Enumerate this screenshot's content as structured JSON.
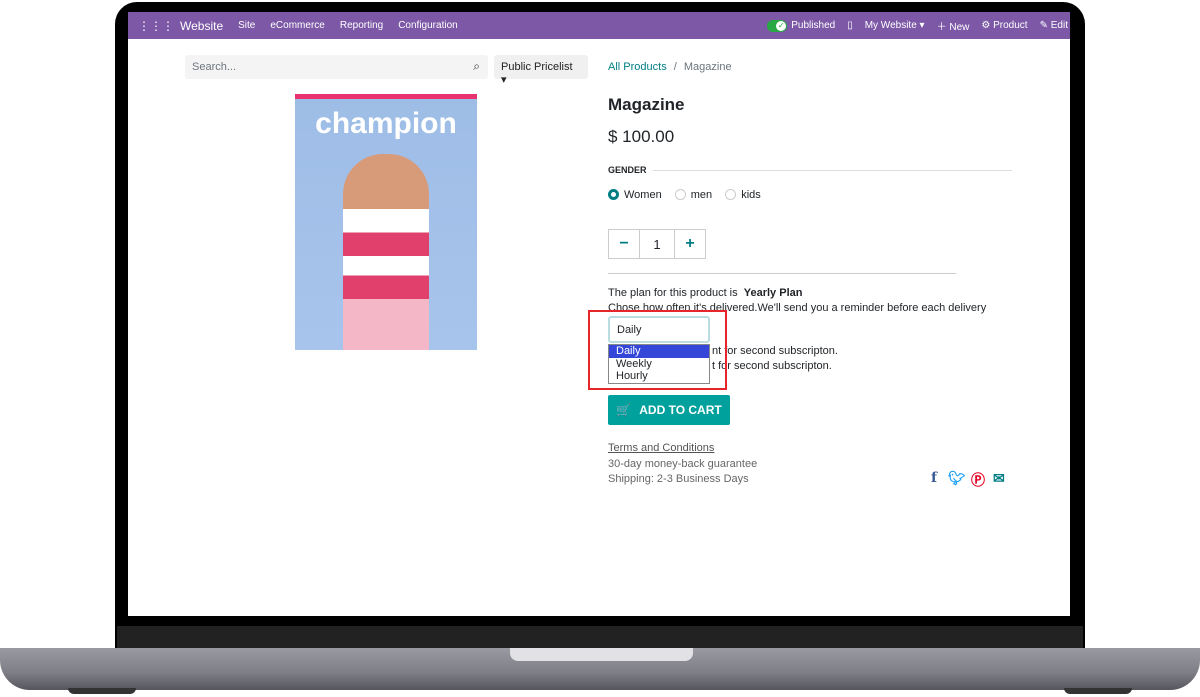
{
  "topbar": {
    "app": "Website",
    "menu": [
      "Site",
      "eCommerce",
      "Reporting",
      "Configuration"
    ],
    "published": "Published",
    "my_website": "My Website",
    "new": "New",
    "product": "Product",
    "edit": "Edit"
  },
  "search": {
    "placeholder": "Search..."
  },
  "pricelist": "Public Pricelist",
  "breadcrumb": {
    "parent": "All Products",
    "sep": "/",
    "current": "Magazine"
  },
  "product": {
    "name": "Magazine",
    "price": "$ 100.00",
    "image_title": "champion"
  },
  "attribute": {
    "label": "GENDER",
    "options": [
      "Women",
      "men",
      "kids"
    ],
    "selected": "Women"
  },
  "quantity": "1",
  "subscription": {
    "plan_prefix": "The plan for this product is",
    "plan": "Yearly Plan",
    "delivery_text": "Chose how often it's delivered.We'll send you a reminder before each delivery",
    "line1_visible": "nt for second subscripton.",
    "line2_visible": "t for second subscripton."
  },
  "frequency": {
    "selected": "Daily",
    "options": [
      "Daily",
      "Weekly",
      "Hourly"
    ],
    "highlighted": "Daily"
  },
  "add_to_cart": "ADD TO CART",
  "terms": "Terms and Conditions",
  "guarantee": "30-day money-back guarantee",
  "shipping": "Shipping: 2-3 Business Days",
  "colors": {
    "topbar": "#7c58a6",
    "accent": "#017e84",
    "cart": "#00a09d",
    "highlight": "#e5262a"
  }
}
